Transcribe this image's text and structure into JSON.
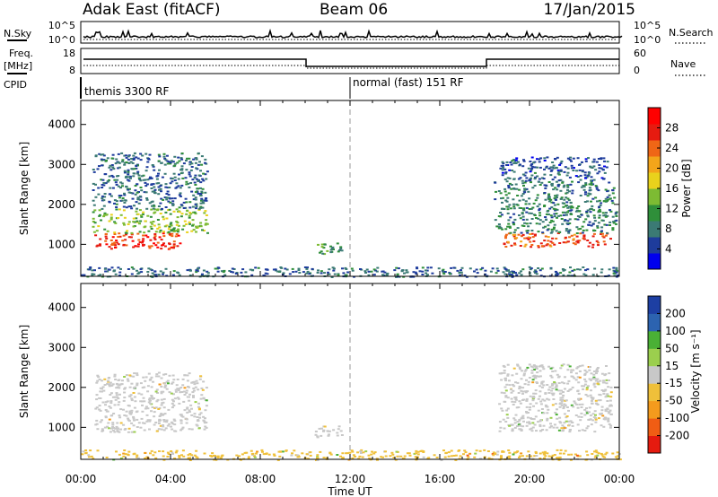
{
  "header": {
    "station": "Adak East (fitACF)",
    "beam": "Beam 06",
    "date": "17/Jan/2015"
  },
  "left_labels": {
    "nsky": "N.Sky",
    "freq_line1": "Freq.",
    "freq_line2": "[MHz]",
    "cpid": "CPID"
  },
  "right_labels": {
    "nsearch": "N.Search",
    "nave": "Nave"
  },
  "top_panel": {
    "nsky_ticks": [
      "10^5",
      "10^0"
    ],
    "nsearch_ticks": [
      "10^5",
      "10^0"
    ],
    "freq_ticks": [
      "18",
      "8"
    ],
    "nave_ticks": [
      "60",
      "0"
    ]
  },
  "cpid": {
    "mode1": "themis 3300 RF",
    "mode2": "normal (fast) 151 RF"
  },
  "power_panel": {
    "ylabel": "Slant Range [km]",
    "cbar_label": "Power [dB]",
    "cbar_ticks": [
      "28",
      "24",
      "20",
      "16",
      "12",
      "8",
      "4"
    ]
  },
  "velocity_panel": {
    "ylabel": "Slant Range [km]",
    "cbar_label": "Velocity [m s⁻¹]",
    "cbar_ticks": [
      "200",
      "100",
      "50",
      "15",
      "-15",
      "-50",
      "-100",
      "-200"
    ]
  },
  "xaxis": {
    "label": "Time UT",
    "ticks": [
      "00:00",
      "04:00",
      "08:00",
      "12:00",
      "16:00",
      "20:00",
      "00:00"
    ]
  },
  "colors": {
    "power_scale": [
      "#0000ee",
      "#1e3c9c",
      "#3b7a74",
      "#2f8f3a",
      "#7dbb33",
      "#e9d21c",
      "#f3a51a",
      "#ef6616",
      "#e61b10",
      "#ff0000"
    ],
    "velocity_scale": [
      "#e51b0f",
      "#f05d14",
      "#f49b1d",
      "#efc03a",
      "#c8c8c8",
      "#9bcf4e",
      "#4ab035",
      "#2c63b0",
      "#1d3fa3"
    ]
  },
  "chart_data": [
    {
      "type": "heatmap",
      "title": "Power",
      "x_unit": "Time UT (hours)",
      "y_unit": "Slant Range [km]",
      "xlim": [
        0,
        24
      ],
      "ylim": [
        200,
        4600
      ],
      "yticks": [
        1000,
        2000,
        3000,
        4000
      ],
      "clim": [
        0,
        32
      ],
      "regions": [
        {
          "x": [
            0.6,
            4.4
          ],
          "y": [
            900,
            1300
          ],
          "level": 28
        },
        {
          "x": [
            0.5,
            5.6
          ],
          "y": [
            1300,
            1900
          ],
          "level": 14
        },
        {
          "x": [
            0.5,
            5.6
          ],
          "y": [
            1900,
            3300
          ],
          "level": 6
        },
        {
          "x": [
            10.4,
            11.6
          ],
          "y": [
            750,
            1050
          ],
          "level": 10
        },
        {
          "x": [
            18.8,
            23.6
          ],
          "y": [
            950,
            1300
          ],
          "level": 26
        },
        {
          "x": [
            18.4,
            23.9
          ],
          "y": [
            1300,
            2600
          ],
          "level": 8
        },
        {
          "x": [
            18.6,
            23.5
          ],
          "y": [
            2600,
            3200
          ],
          "level": 5
        },
        {
          "x": [
            0,
            24
          ],
          "y": [
            200,
            450
          ],
          "level": 6
        }
      ]
    },
    {
      "type": "heatmap",
      "title": "Velocity",
      "x_unit": "Time UT (hours)",
      "y_unit": "Slant Range [km]",
      "xlim": [
        0,
        24
      ],
      "ylim": [
        200,
        4600
      ],
      "yticks": [
        1000,
        2000,
        3000,
        4000
      ],
      "clim": [
        -250,
        250
      ],
      "regions": [
        {
          "x": [
            0.6,
            5.6
          ],
          "y": [
            900,
            2400
          ],
          "level": 0
        },
        {
          "x": [
            10.4,
            11.6
          ],
          "y": [
            750,
            1050
          ],
          "level": 0
        },
        {
          "x": [
            18.6,
            23.6
          ],
          "y": [
            900,
            2600
          ],
          "level": 0
        },
        {
          "x": [
            0,
            24
          ],
          "y": [
            200,
            450
          ],
          "level": -40
        }
      ]
    }
  ]
}
